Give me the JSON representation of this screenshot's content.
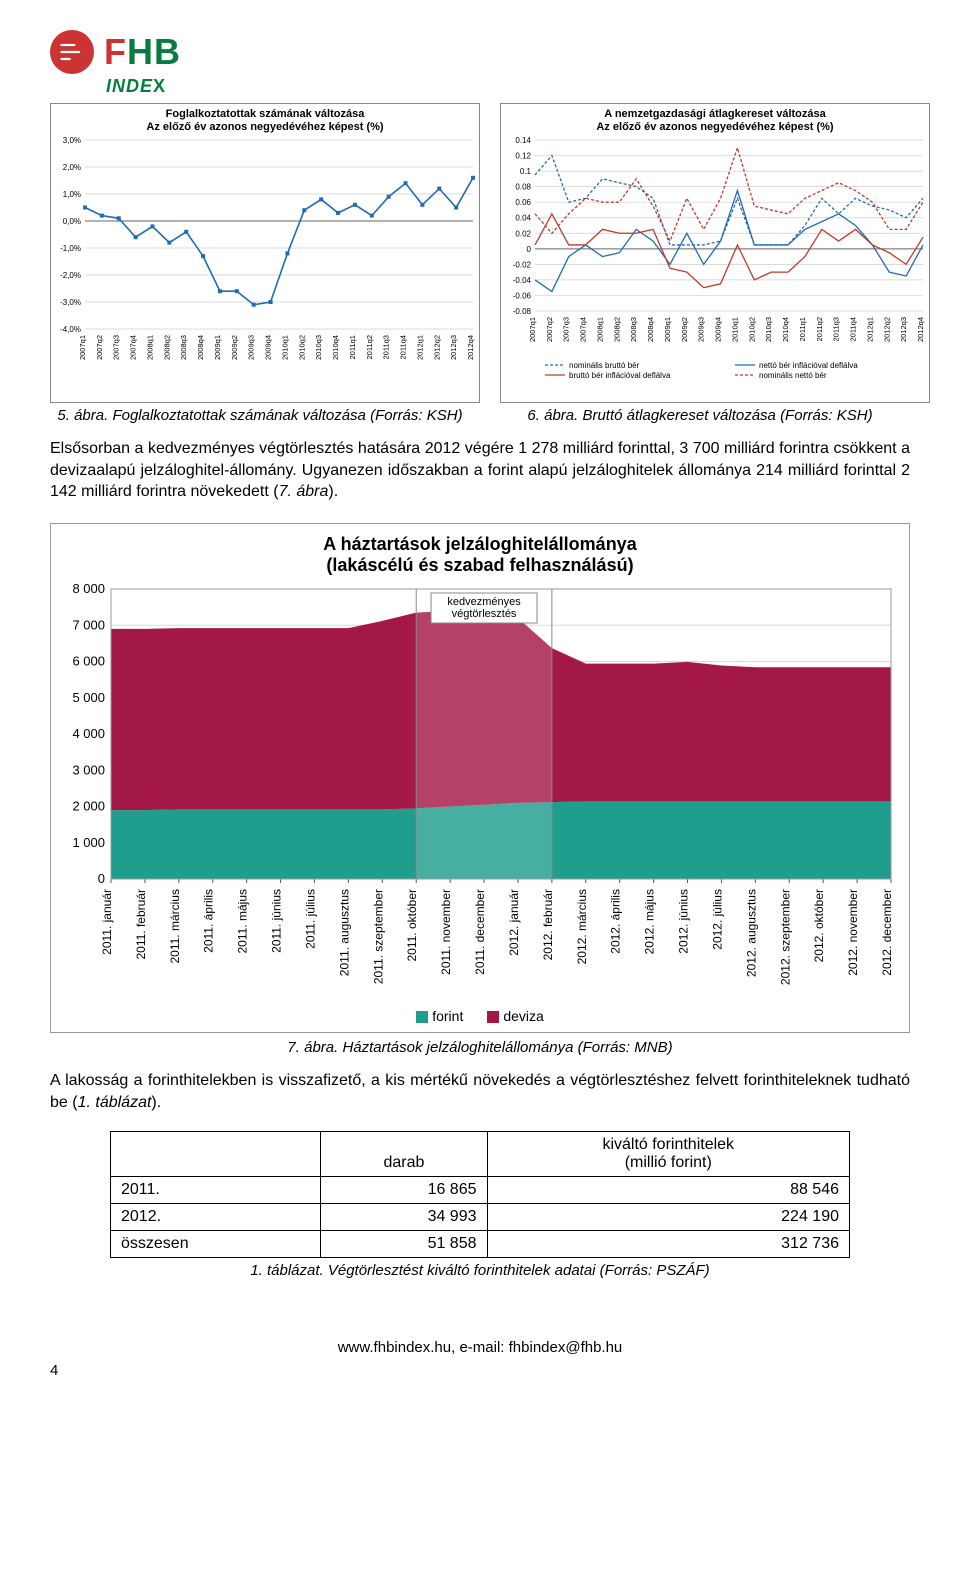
{
  "logo": {
    "brand_fhb": "FHB",
    "brand_sub": "INDEX"
  },
  "chart_left": {
    "type": "line",
    "title_l1": "Foglalkoztatottak számának változása",
    "title_l2": "Az előző év azonos negyedévéhez képest (%)",
    "y_ticks": [
      "3,0%",
      "2,0%",
      "1,0%",
      "0,0%",
      "-1,0%",
      "-2,0%",
      "-3,0%",
      "-4,0%"
    ],
    "x_ticks": [
      "2007q1",
      "2007q2",
      "2007q3",
      "2007q4",
      "2008q1",
      "2008q2",
      "2008q3",
      "2008q4",
      "2009q1",
      "2009q2",
      "2009q3",
      "2009q4",
      "2010q1",
      "2010q2",
      "2010q3",
      "2010q4",
      "2011q1",
      "2011q2",
      "2011q3",
      "2011q4",
      "2012q1",
      "2012q2",
      "2012q3",
      "2012q4"
    ],
    "values_pct": [
      0.5,
      0.2,
      0.1,
      -0.6,
      -0.2,
      -0.8,
      -0.4,
      -1.3,
      -2.6,
      -2.6,
      -3.1,
      -3.0,
      -1.2,
      0.4,
      0.8,
      0.3,
      0.6,
      0.2,
      0.9,
      1.4,
      0.6,
      1.2,
      0.5,
      1.6
    ],
    "line_color": "#1f6bb6",
    "grid_color": "#cfcfcf",
    "axis_color": "#666",
    "font_size_title": 11,
    "font_size_ticks": 8,
    "ylim": [
      -4,
      3
    ]
  },
  "chart_right": {
    "type": "line-multi",
    "title_l1": "A nemzetgazdasági átlagkereset változása",
    "title_l2": "Az előző év azonos negyedévéhez képest (%)",
    "y_ticks": [
      "0.14",
      "0.12",
      "0.1",
      "0.08",
      "0.06",
      "0.04",
      "0.02",
      "0",
      "-0.02",
      "-0.04",
      "-0.06",
      "-0.08"
    ],
    "x_ticks": [
      "2007q1",
      "2007q2",
      "2007q3",
      "2007q4",
      "2008q1",
      "2008q2",
      "2008q3",
      "2008q4",
      "2009q1",
      "2009q2",
      "2009q3",
      "2009q4",
      "2010q1",
      "2010q2",
      "2010q3",
      "2010q4",
      "2011q1",
      "2011q2",
      "2011q3",
      "2011q4",
      "2012q1",
      "2012q2",
      "2012q3",
      "2012q4"
    ],
    "series": [
      {
        "name": "nominális bruttó bér",
        "color": "#1f6bb6",
        "dash": "3,2",
        "values": [
          0.095,
          0.12,
          0.06,
          0.065,
          0.09,
          0.085,
          0.08,
          0.065,
          0.005,
          0.005,
          0.005,
          0.01,
          0.065,
          0.005,
          0.005,
          0.005,
          0.03,
          0.065,
          0.045,
          0.065,
          0.055,
          0.05,
          0.04,
          0.065
        ]
      },
      {
        "name": "nettó bér inflációval deflálva",
        "color": "#1f6bb6",
        "dash": "none",
        "values": [
          -0.04,
          -0.055,
          -0.01,
          0.005,
          -0.01,
          -0.005,
          0.025,
          0.01,
          -0.02,
          0.02,
          -0.02,
          0.01,
          0.075,
          0.005,
          0.005,
          0.005,
          0.025,
          0.035,
          0.045,
          0.03,
          0.005,
          -0.03,
          -0.035,
          0.005
        ]
      },
      {
        "name": "bruttó bér inflációval deflálva",
        "color": "#c0392b",
        "dash": "none",
        "values": [
          0.005,
          0.045,
          0.005,
          0.005,
          0.025,
          0.02,
          0.02,
          0.025,
          -0.025,
          -0.03,
          -0.05,
          -0.045,
          0.005,
          -0.04,
          -0.03,
          -0.03,
          -0.01,
          0.025,
          0.01,
          0.025,
          0.005,
          -0.005,
          -0.02,
          0.015
        ]
      },
      {
        "name": "nominális nettó bér",
        "color": "#c0392b",
        "dash": "3,2",
        "values": [
          0.045,
          0.02,
          0.045,
          0.065,
          0.06,
          0.06,
          0.09,
          0.055,
          0.01,
          0.065,
          0.025,
          0.065,
          0.13,
          0.055,
          0.05,
          0.045,
          0.065,
          0.075,
          0.085,
          0.075,
          0.06,
          0.025,
          0.025,
          0.06
        ]
      }
    ],
    "legend": [
      {
        "label": "nominális bruttó bér",
        "color": "#1f6bb6",
        "dash": "3,2"
      },
      {
        "label": "nettó bér inflációval deflálva",
        "color": "#1f6bb6",
        "dash": "none"
      },
      {
        "label": "bruttó bér inflációval deflálva",
        "color": "#c0392b",
        "dash": "none"
      },
      {
        "label": "nominális nettó bér",
        "color": "#c0392b",
        "dash": "3,2"
      }
    ],
    "grid_color": "#cfcfcf",
    "axis_color": "#666",
    "font_size_title": 11,
    "font_size_ticks": 8,
    "ylim": [
      -0.08,
      0.14
    ]
  },
  "caption_left": "5. ábra. Foglalkoztatottak számának változása (Forrás: KSH)",
  "caption_right": "6. ábra. Bruttó átlagkereset változása (Forrás: KSH)",
  "paragraph_1": "Elsősorban a kedvezményes végtörlesztés hatására 2012 végére 1 278 milliárd forinttal, 3 700 milliárd forintra csökkent a devizaalapú jelzáloghitel-állomány. Ugyanezen időszakban a forint alapú jelzáloghitelek állománya 214 milliárd forinttal 2 142 milliárd forintra növekedett (",
  "paragraph_1_ref": "7. ábra",
  "paragraph_1_end": ").",
  "big_chart": {
    "type": "area-stacked",
    "title_l1": "A háztartások jelzáloghitelállománya",
    "title_l2": "(lakáscélú és szabad felhasználású)",
    "y_ticks": [
      "8 000",
      "7 000",
      "6 000",
      "5 000",
      "4 000",
      "3 000",
      "2 000",
      "1 000",
      "0"
    ],
    "x_ticks": [
      "2011. január",
      "2011. február",
      "2011. március",
      "2011. április",
      "2011. május",
      "2011. június",
      "2011. július",
      "2011. augusztus",
      "2011. szeptember",
      "2011. október",
      "2011. november",
      "2011. december",
      "2012. január",
      "2012. február",
      "2012. március",
      "2012. április",
      "2012. május",
      "2012. június",
      "2012. július",
      "2012. augusztus",
      "2012. szeptember",
      "2012. október",
      "2012. november",
      "2012. december"
    ],
    "series_forint": {
      "color": "#1f9e8e",
      "values": [
        1900,
        1900,
        1920,
        1920,
        1920,
        1920,
        1920,
        1920,
        1920,
        1950,
        2000,
        2050,
        2100,
        2120,
        2140,
        2140,
        2140,
        2140,
        2140,
        2140,
        2140,
        2140,
        2140,
        2142
      ]
    },
    "series_deviza": {
      "color": "#a41846",
      "values": [
        5000,
        5000,
        5000,
        5000,
        5000,
        5000,
        5000,
        5000,
        5200,
        5400,
        5400,
        5300,
        5100,
        4250,
        3800,
        3800,
        3800,
        3850,
        3750,
        3700,
        3700,
        3700,
        3700,
        3700
      ]
    },
    "highlight_band": {
      "start_idx": 9,
      "end_idx": 13,
      "label": "kedvezményes végtörlesztés",
      "fill": "#f7f7f7",
      "border": "#888"
    },
    "legend": [
      {
        "label": "forint",
        "color": "#1f9e8e"
      },
      {
        "label": "deviza",
        "color": "#a41846"
      }
    ],
    "grid_color": "#d8d8d8",
    "axis_color": "#555",
    "ylim": [
      0,
      8000
    ],
    "font_size_ticks": 12
  },
  "big_caption": "7. ábra. Háztartások jelzáloghitelállománya (Forrás: MNB)",
  "paragraph_2": "A lakosság a forinthitelekben is visszafizető, a kis mértékű növekedés a végtörlesztéshez felvett forinthiteleknek tudható be (",
  "paragraph_2_ref": "1. táblázat",
  "paragraph_2_end": ").",
  "table": {
    "col_blank": "",
    "col_darab": "darab",
    "col_kivalto_l1": "kiváltó forinthitelek",
    "col_kivalto_l2": "(millió forint)",
    "rows": [
      {
        "year": "2011.",
        "darab": "16 865",
        "kiv": "88 546"
      },
      {
        "year": "2012.",
        "darab": "34 993",
        "kiv": "224 190"
      },
      {
        "year": "összesen",
        "darab": "51 858",
        "kiv": "312 736"
      }
    ]
  },
  "table_caption": "1. táblázat. Végtörlesztést kiváltó forinthitelek adatai (Forrás: PSZÁF)",
  "footer": "www.fhbindex.hu, e-mail: fhbindex@fhb.hu",
  "page_number": "4"
}
